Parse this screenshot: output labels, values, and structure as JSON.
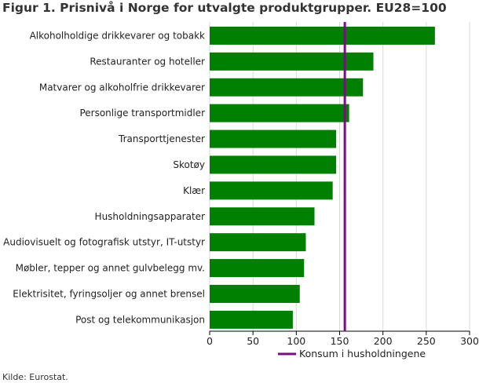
{
  "title": "Figur 1. Prisnivå i Norge for utvalgte produktgrupper. EU28=100",
  "source": "Kilde: Eurostat.",
  "colors": {
    "bar": "#008000",
    "reference": "#7B0D84",
    "grid": "#d9d9d9"
  },
  "chart_data": {
    "type": "bar",
    "orientation": "horizontal",
    "categories": [
      "Alkoholholdige drikkevarer og tobakk",
      "Restauranter og hoteller",
      "Matvarer og alkoholfrie drikkevarer",
      "Personlige transportmidler",
      "Transporttjenester",
      "Skotøy",
      "Klær",
      "Husholdningsapparater",
      "Audiovisuelt og fotografisk utstyr, IT-utstyr",
      "Møbler, tepper og annet gulvbelegg mv.",
      "Elektrisitet, fyringsoljer og annet brensel",
      "Post og telekommunikasjon"
    ],
    "values": [
      260,
      189,
      177,
      161,
      146,
      146,
      142,
      121,
      111,
      109,
      104,
      96
    ],
    "xlim": [
      0,
      300
    ],
    "xticks": [
      0,
      50,
      100,
      150,
      200,
      250,
      300
    ],
    "grid": true,
    "reference_line": {
      "name": "Konsum i husholdningene",
      "value": 156
    },
    "legend": "bottom"
  }
}
